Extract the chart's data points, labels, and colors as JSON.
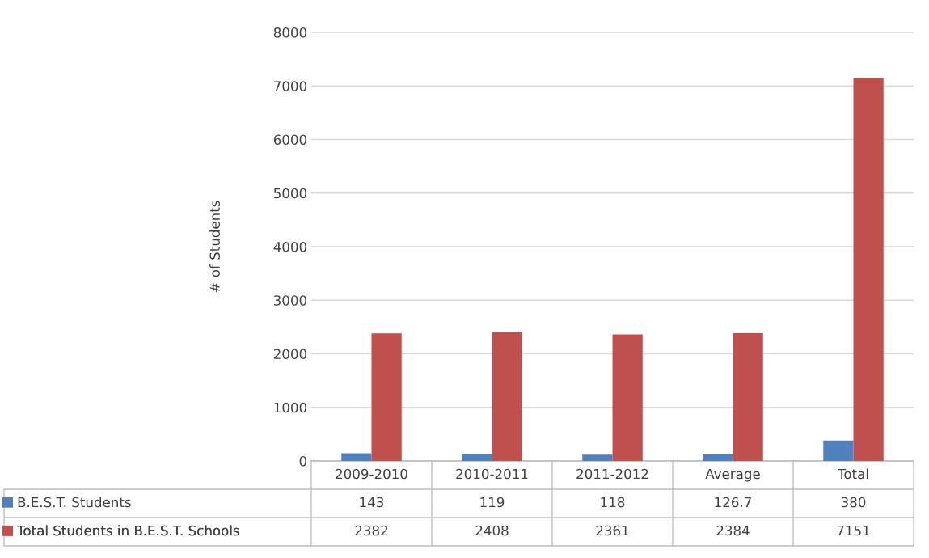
{
  "chart_data": {
    "type": "bar",
    "ylabel": "# of Students",
    "categories": [
      "2009-2010",
      "2010-2011",
      "2011-2012",
      "Average",
      "Total"
    ],
    "series": [
      {
        "name": "B.E.S.T. Students",
        "color": "#4f81bd",
        "values": [
          143,
          119,
          118,
          126.7,
          380
        ]
      },
      {
        "name": "Total Students in B.E.S.T. Schools",
        "color": "#c0504d",
        "values": [
          2382,
          2408,
          2361,
          2384,
          7151
        ]
      }
    ],
    "ylim": [
      0,
      8000
    ],
    "yticks": [
      0,
      1000,
      2000,
      3000,
      4000,
      5000,
      6000,
      7000,
      8000
    ],
    "grid": "y",
    "data_labels": true,
    "legend": "bottom left"
  }
}
